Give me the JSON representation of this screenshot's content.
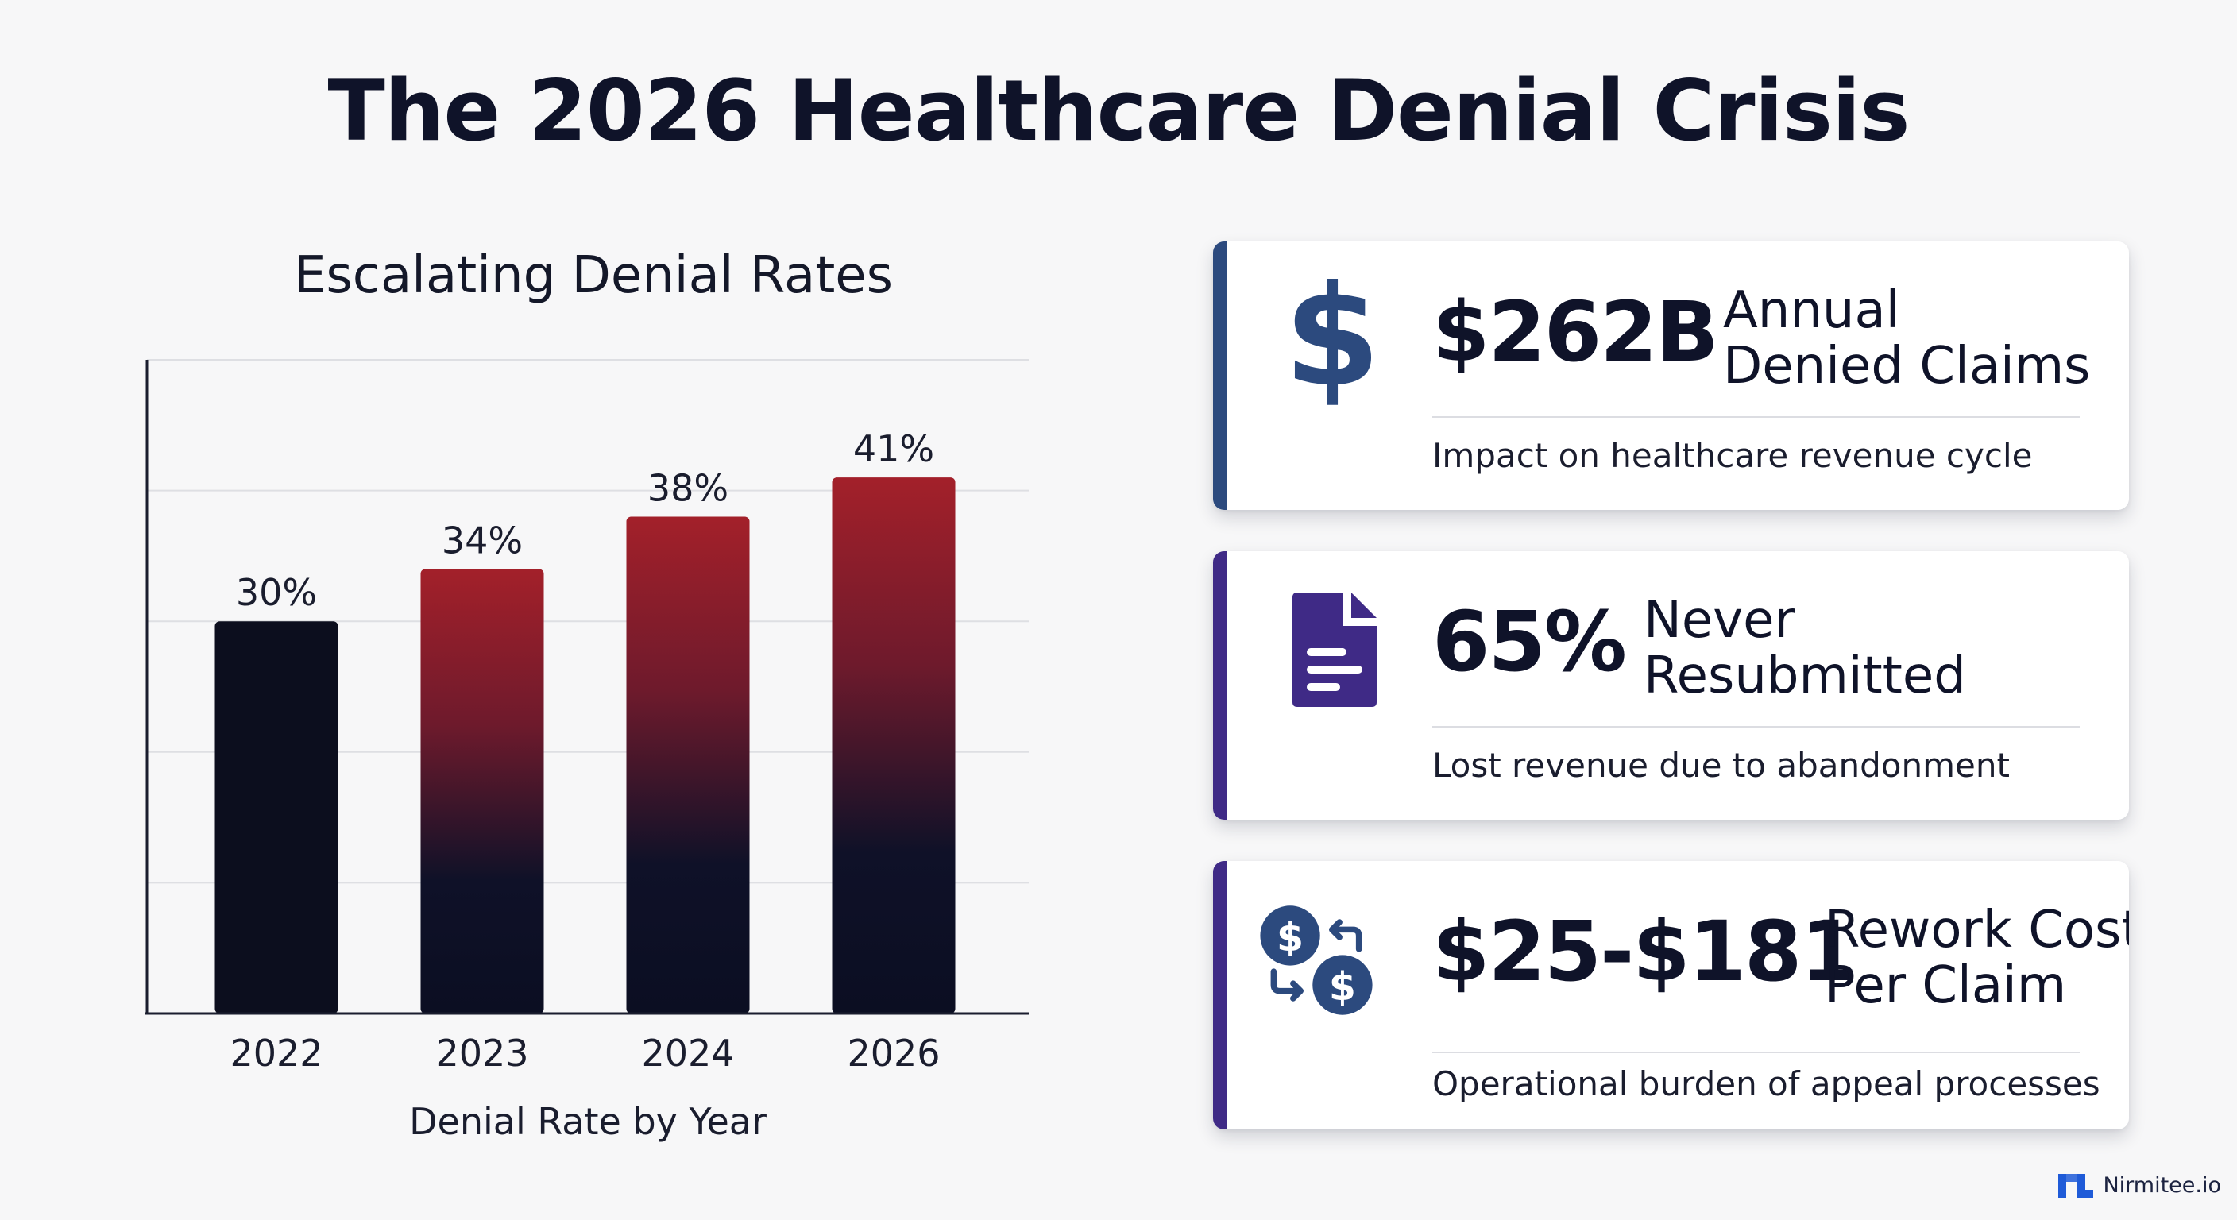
{
  "title": "The 2026 Healthcare Denial Crisis",
  "chart_data": {
    "type": "bar",
    "title": "Escalating Denial Rates",
    "xlabel": "Denial Rate by Year",
    "ylabel": "",
    "categories": [
      "2022",
      "2023",
      "2024",
      "2026"
    ],
    "values": [
      30,
      34,
      38,
      41
    ],
    "data_labels": [
      "30%",
      "34%",
      "38%",
      "41%"
    ],
    "ylim": [
      0,
      50
    ],
    "grid": true,
    "colors": {
      "bar_2022": "#0c0e1e",
      "bar_top_red": "#a3202a",
      "bar_bottom_navy": "#0b0e22",
      "grid": "#dedfe3",
      "axis": "#1a1d2e"
    }
  },
  "cards": [
    {
      "value": "$262B",
      "label_line1": "Annual",
      "label_line2": "Denied Claims",
      "description": "Impact on healthcare revenue cycle",
      "icon": "dollar-sign-icon",
      "accent": "#2c4a7e"
    },
    {
      "value": "65%",
      "label_line1": "Never",
      "label_line2": "Resubmitted",
      "description": "Lost revenue due to abandonment",
      "icon": "document-icon",
      "accent": "#3f2a86"
    },
    {
      "value": "$25-$181",
      "label_line1": "Rework Cost",
      "label_line2": "Per Claim",
      "description": "Operational burden of appeal processes",
      "icon": "dollar-exchange-icon",
      "accent": "#3f2a86"
    }
  ],
  "brand": {
    "name": "Nirmitee.io",
    "logo_icon": "nirmitee-logo-icon",
    "color": "#1f5bd8"
  }
}
